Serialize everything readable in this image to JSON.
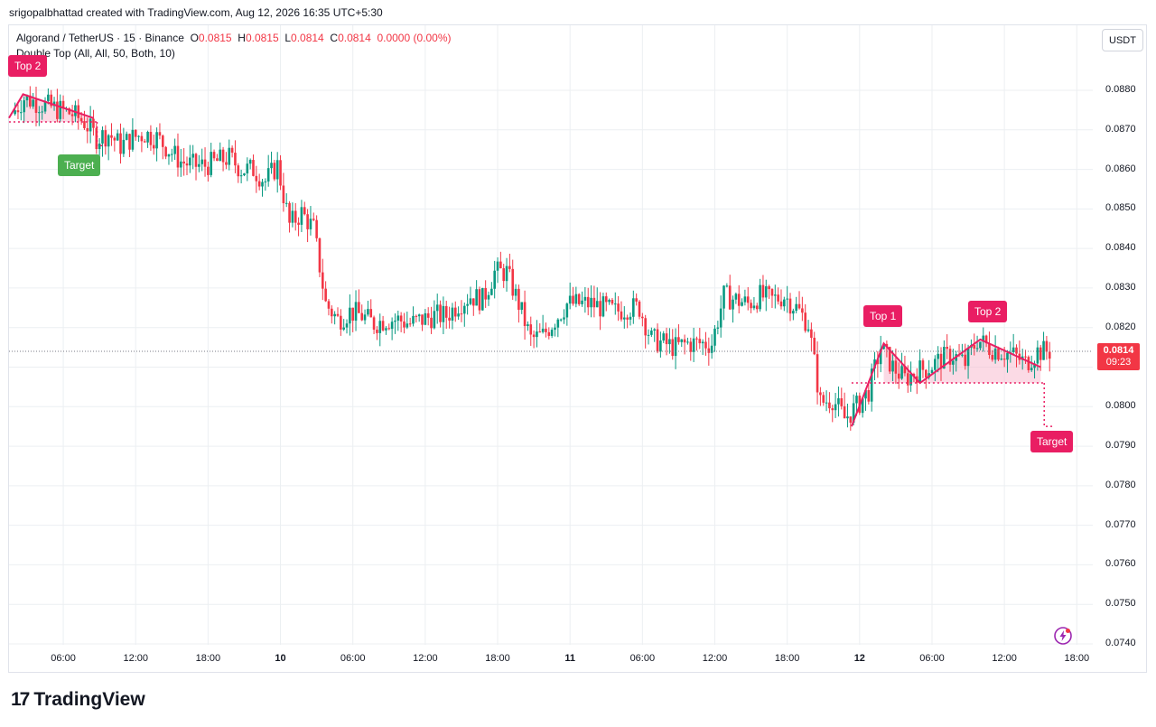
{
  "header": {
    "created_by": "srigopalbhattad created with TradingView.com, Aug 12, 2026 16:35 UTC+5:30"
  },
  "legend": {
    "symbol": "Algorand / TetherUS · 15 · Binance",
    "o_label": "O",
    "o_value": "0.0815",
    "h_label": "H",
    "h_value": "0.0815",
    "l_label": "L",
    "l_value": "0.0814",
    "c_label": "C",
    "c_value": "0.0814",
    "change": "0.0000 (0.00%)",
    "indicator": "Double Top (All, All, 50, Both, 10)"
  },
  "currency_button": "USDT",
  "last_price": {
    "value": "0.0814",
    "countdown": "09:23"
  },
  "pattern_labels": {
    "top2_left": "Top 2",
    "target_left": "Target",
    "top1_right": "Top 1",
    "top2_right": "Top 2",
    "target_right": "Target"
  },
  "branding": {
    "logo_text": "TradingView",
    "logo_mark": "17"
  },
  "colors": {
    "up": "#089981",
    "down": "#f23645",
    "pattern": "#e91e63",
    "pattern_fill": "#f8bbd0",
    "target_green": "#4caf50",
    "grid": "#e0e3eb"
  },
  "chart_data": {
    "type": "candlestick",
    "symbol": "Algorand / TetherUS",
    "interval": "15",
    "exchange": "Binance",
    "y_axis": {
      "ticks": [
        "0.0880",
        "0.0870",
        "0.0860",
        "0.0850",
        "0.0840",
        "0.0830",
        "0.0820",
        "0.0810",
        "0.0800",
        "0.0790",
        "0.0780",
        "0.0770",
        "0.0760",
        "0.0750",
        "0.0740"
      ],
      "range": [
        0.0739,
        0.0891
      ]
    },
    "x_axis": {
      "ticks": [
        "06:00",
        "12:00",
        "18:00",
        "10",
        "06:00",
        "12:00",
        "18:00",
        "11",
        "06:00",
        "12:00",
        "18:00",
        "12",
        "06:00",
        "12:00",
        "18:00"
      ],
      "bold_ticks": [
        "10",
        "11",
        "12"
      ]
    },
    "price_path_hourly": [
      {
        "t": "Aug 9 02:00",
        "p": 0.0874
      },
      {
        "t": "03:00",
        "p": 0.0878
      },
      {
        "t": "04:00",
        "p": 0.0877
      },
      {
        "t": "05:00",
        "p": 0.0876
      },
      {
        "t": "06:00",
        "p": 0.0875
      },
      {
        "t": "07:00",
        "p": 0.0874
      },
      {
        "t": "08:00",
        "p": 0.0872
      },
      {
        "t": "09:00",
        "p": 0.0868
      },
      {
        "t": "10:00",
        "p": 0.0869
      },
      {
        "t": "11:00",
        "p": 0.0866
      },
      {
        "t": "12:00",
        "p": 0.0868
      },
      {
        "t": "13:00",
        "p": 0.0869
      },
      {
        "t": "14:00",
        "p": 0.0868
      },
      {
        "t": "15:00",
        "p": 0.0865
      },
      {
        "t": "16:00",
        "p": 0.0862
      },
      {
        "t": "17:00",
        "p": 0.0861
      },
      {
        "t": "18:00",
        "p": 0.0861
      },
      {
        "t": "19:00",
        "p": 0.0862
      },
      {
        "t": "20:00",
        "p": 0.0863
      },
      {
        "t": "21:00",
        "p": 0.086
      },
      {
        "t": "22:00",
        "p": 0.086
      },
      {
        "t": "23:00",
        "p": 0.0857
      },
      {
        "t": "Aug 10 00:00",
        "p": 0.0861
      },
      {
        "t": "01:00",
        "p": 0.0846
      },
      {
        "t": "02:00",
        "p": 0.0849
      },
      {
        "t": "03:00",
        "p": 0.0845
      },
      {
        "t": "04:00",
        "p": 0.0826
      },
      {
        "t": "05:00",
        "p": 0.0822
      },
      {
        "t": "06:00",
        "p": 0.0824
      },
      {
        "t": "07:00",
        "p": 0.0823
      },
      {
        "t": "08:00",
        "p": 0.0821
      },
      {
        "t": "09:00",
        "p": 0.0822
      },
      {
        "t": "10:00",
        "p": 0.0822
      },
      {
        "t": "11:00",
        "p": 0.0821
      },
      {
        "t": "12:00",
        "p": 0.0822
      },
      {
        "t": "13:00",
        "p": 0.0823
      },
      {
        "t": "14:00",
        "p": 0.0823
      },
      {
        "t": "15:00",
        "p": 0.0826
      },
      {
        "t": "16:00",
        "p": 0.0828
      },
      {
        "t": "17:00",
        "p": 0.0827
      },
      {
        "t": "18:00",
        "p": 0.0834
      },
      {
        "t": "19:00",
        "p": 0.0834
      },
      {
        "t": "20:00",
        "p": 0.0826
      },
      {
        "t": "21:00",
        "p": 0.0817
      },
      {
        "t": "22:00",
        "p": 0.0818
      },
      {
        "t": "23:00",
        "p": 0.0822
      },
      {
        "t": "Aug 11 00:00",
        "p": 0.0826
      },
      {
        "t": "01:00",
        "p": 0.0826
      },
      {
        "t": "02:00",
        "p": 0.0826
      },
      {
        "t": "03:00",
        "p": 0.0825
      },
      {
        "t": "04:00",
        "p": 0.0824
      },
      {
        "t": "05:00",
        "p": 0.0825
      },
      {
        "t": "06:00",
        "p": 0.0825
      },
      {
        "t": "07:00",
        "p": 0.0817
      },
      {
        "t": "08:00",
        "p": 0.0816
      },
      {
        "t": "09:00",
        "p": 0.0815
      },
      {
        "t": "10:00",
        "p": 0.0816
      },
      {
        "t": "11:00",
        "p": 0.0816
      },
      {
        "t": "12:00",
        "p": 0.0816
      },
      {
        "t": "13:00",
        "p": 0.0828
      },
      {
        "t": "14:00",
        "p": 0.0827
      },
      {
        "t": "15:00",
        "p": 0.0826
      },
      {
        "t": "16:00",
        "p": 0.0828
      },
      {
        "t": "17:00",
        "p": 0.0827
      },
      {
        "t": "18:00",
        "p": 0.0828
      },
      {
        "t": "19:00",
        "p": 0.0825
      },
      {
        "t": "20:00",
        "p": 0.0821
      },
      {
        "t": "21:00",
        "p": 0.0801
      },
      {
        "t": "22:00",
        "p": 0.0802
      },
      {
        "t": "23:00",
        "p": 0.0797
      },
      {
        "t": "Aug 12 00:00",
        "p": 0.08
      },
      {
        "t": "01:00",
        "p": 0.0804
      },
      {
        "t": "02:00",
        "p": 0.0815
      },
      {
        "t": "03:00",
        "p": 0.081
      },
      {
        "t": "04:00",
        "p": 0.0807
      },
      {
        "t": "05:00",
        "p": 0.0809
      },
      {
        "t": "06:00",
        "p": 0.081
      },
      {
        "t": "07:00",
        "p": 0.0812
      },
      {
        "t": "08:00",
        "p": 0.0813
      },
      {
        "t": "09:00",
        "p": 0.0811
      },
      {
        "t": "10:00",
        "p": 0.0817
      },
      {
        "t": "11:00",
        "p": 0.0815
      },
      {
        "t": "12:00",
        "p": 0.0814
      },
      {
        "t": "13:00",
        "p": 0.0813
      },
      {
        "t": "14:00",
        "p": 0.0811
      },
      {
        "t": "15:00",
        "p": 0.0814
      },
      {
        "t": "16:00",
        "p": 0.0814
      }
    ],
    "patterns": [
      {
        "name": "Double Top",
        "points": [
          {
            "label": "",
            "t": "Aug 9 01:30",
            "p": 0.0873
          },
          {
            "label": "Top 2",
            "t": "Aug 9 02:40",
            "p": 0.0879
          },
          {
            "label": "",
            "t": "Aug 9 08:30",
            "p": 0.0873
          }
        ],
        "neckline": 0.0872,
        "target": {
          "label": "Target",
          "p": 0.0866
        }
      },
      {
        "name": "Double Top",
        "points": [
          {
            "label": "",
            "t": "Aug 11 23:20",
            "p": 0.0795
          },
          {
            "label": "Top 1",
            "t": "Aug 12 02:00",
            "p": 0.0816
          },
          {
            "label": "",
            "t": "Aug 12 05:00",
            "p": 0.0806
          },
          {
            "label": "Top 2",
            "t": "Aug 12 10:00",
            "p": 0.0817
          },
          {
            "label": "",
            "t": "Aug 12 15:00",
            "p": 0.081
          }
        ],
        "neckline": 0.0806,
        "target": {
          "label": "Target",
          "p": 0.0795
        }
      }
    ],
    "last": {
      "price": 0.0814,
      "countdown": "09:23"
    }
  }
}
